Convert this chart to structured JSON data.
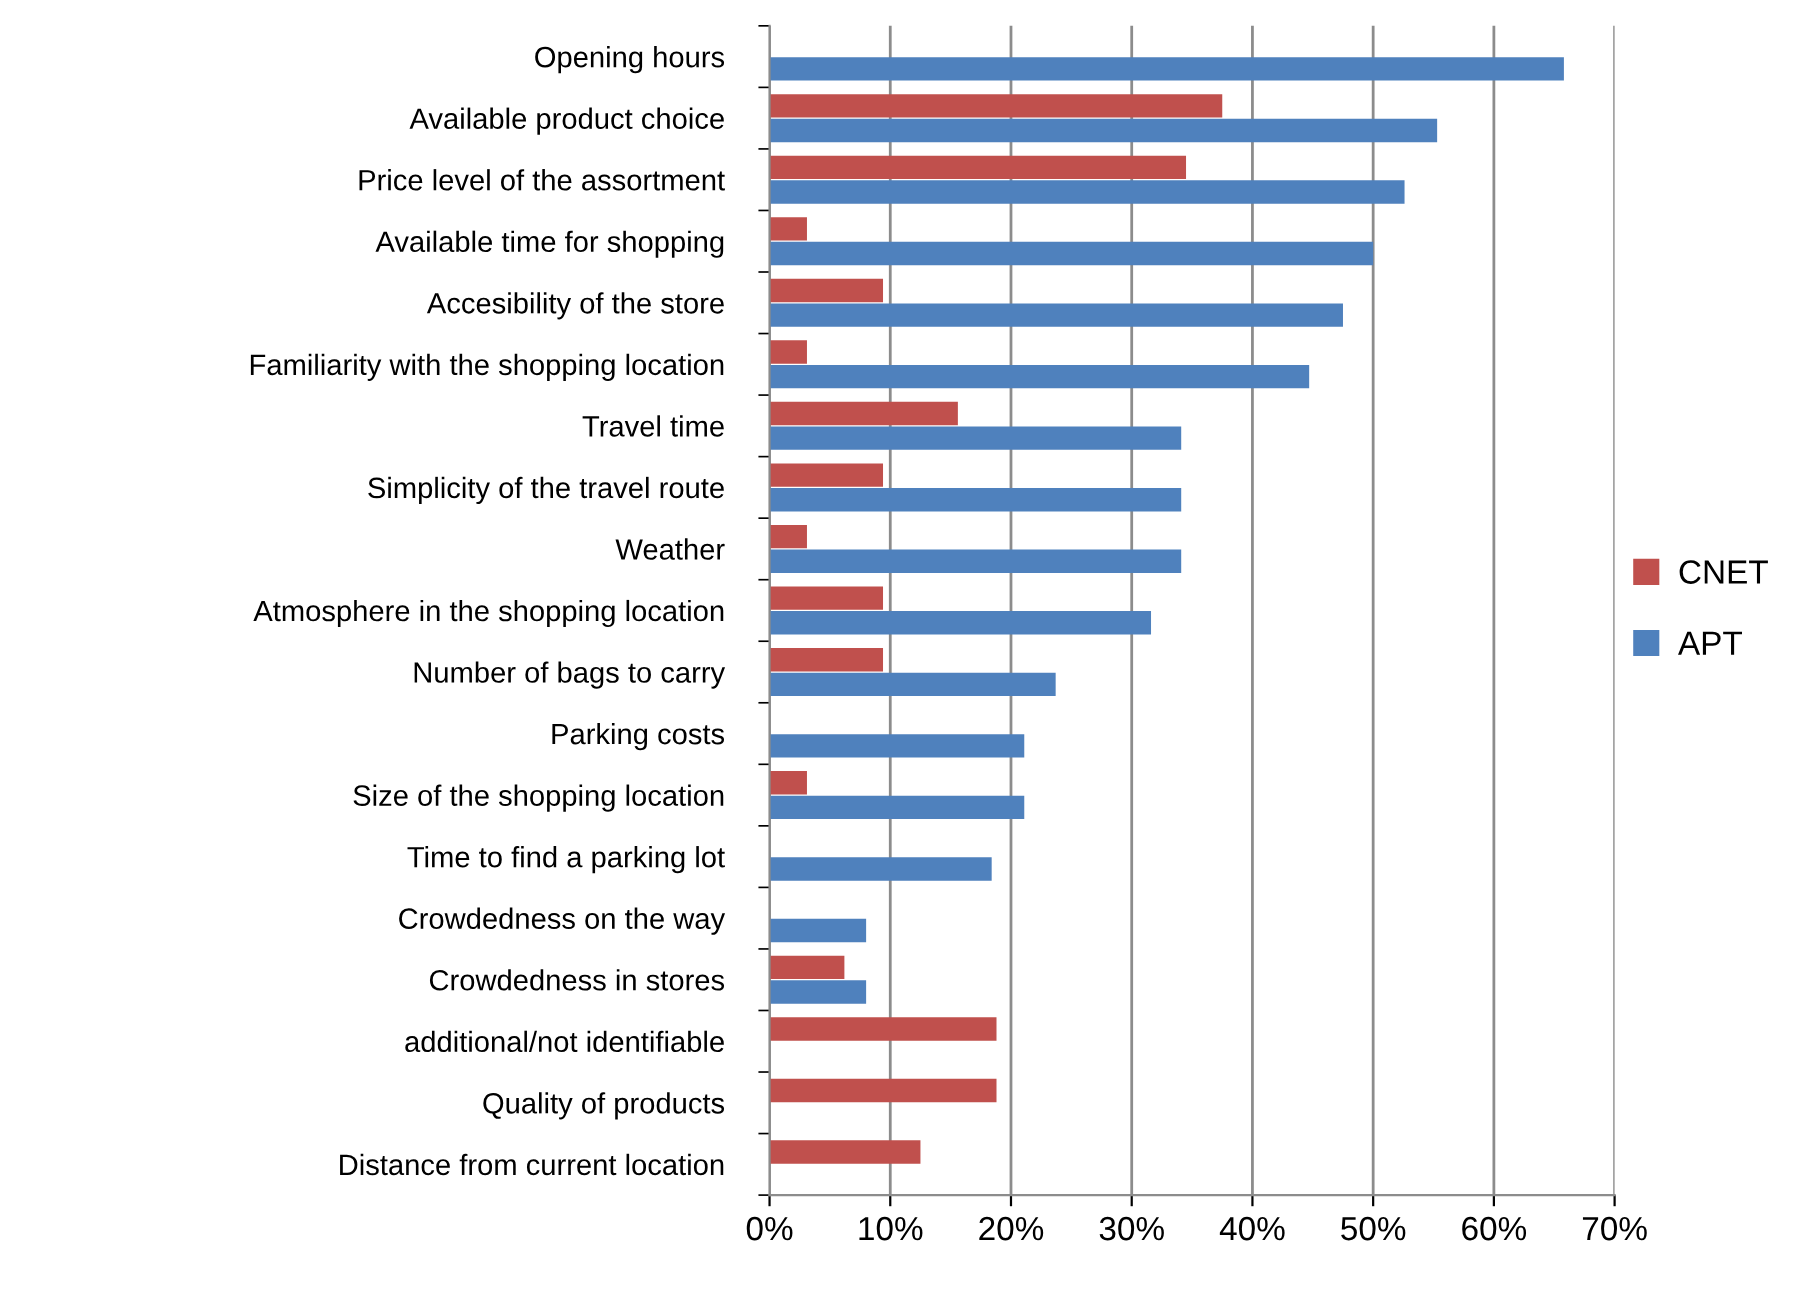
{
  "chart_data": {
    "type": "bar",
    "orientation": "horizontal",
    "categories": [
      "Opening hours",
      "Available product choice",
      "Price level of the assortment",
      "Available time for shopping",
      "Accesibility of the store",
      "Familiarity with the shopping location",
      "Travel time",
      "Simplicity of the travel route",
      "Weather",
      "Atmosphere in the shopping location",
      "Number of bags to carry",
      "Parking costs",
      "Size of the shopping location",
      "Time to find a parking lot",
      "Crowdedness on the way",
      "Crowdedness in stores",
      "additional/not identifiable",
      "Quality of products",
      "Distance from current location"
    ],
    "series": [
      {
        "name": "CNET",
        "color": "#c0504d",
        "values": [
          null,
          37.5,
          34.5,
          3.1,
          9.4,
          3.1,
          15.6,
          9.4,
          3.1,
          9.4,
          9.4,
          null,
          3.1,
          null,
          null,
          6.2,
          18.8,
          18.8,
          12.5
        ]
      },
      {
        "name": "APT",
        "color": "#4f81bd",
        "values": [
          65.8,
          55.3,
          52.6,
          50.0,
          47.5,
          44.7,
          34.1,
          34.1,
          34.1,
          31.6,
          23.7,
          21.1,
          21.1,
          18.4,
          8.0,
          8.0,
          null,
          null,
          null
        ]
      }
    ],
    "xlim": [
      0,
      70
    ],
    "xticks": [
      {
        "value": 0,
        "label": "0%"
      },
      {
        "value": 10,
        "label": "10%"
      },
      {
        "value": 20,
        "label": "20%"
      },
      {
        "value": 30,
        "label": "30%"
      },
      {
        "value": 40,
        "label": "40%"
      },
      {
        "value": 50,
        "label": "50%"
      },
      {
        "value": 60,
        "label": "60%"
      },
      {
        "value": 70,
        "label": "70%"
      }
    ],
    "grid": "x",
    "legend": "right"
  }
}
